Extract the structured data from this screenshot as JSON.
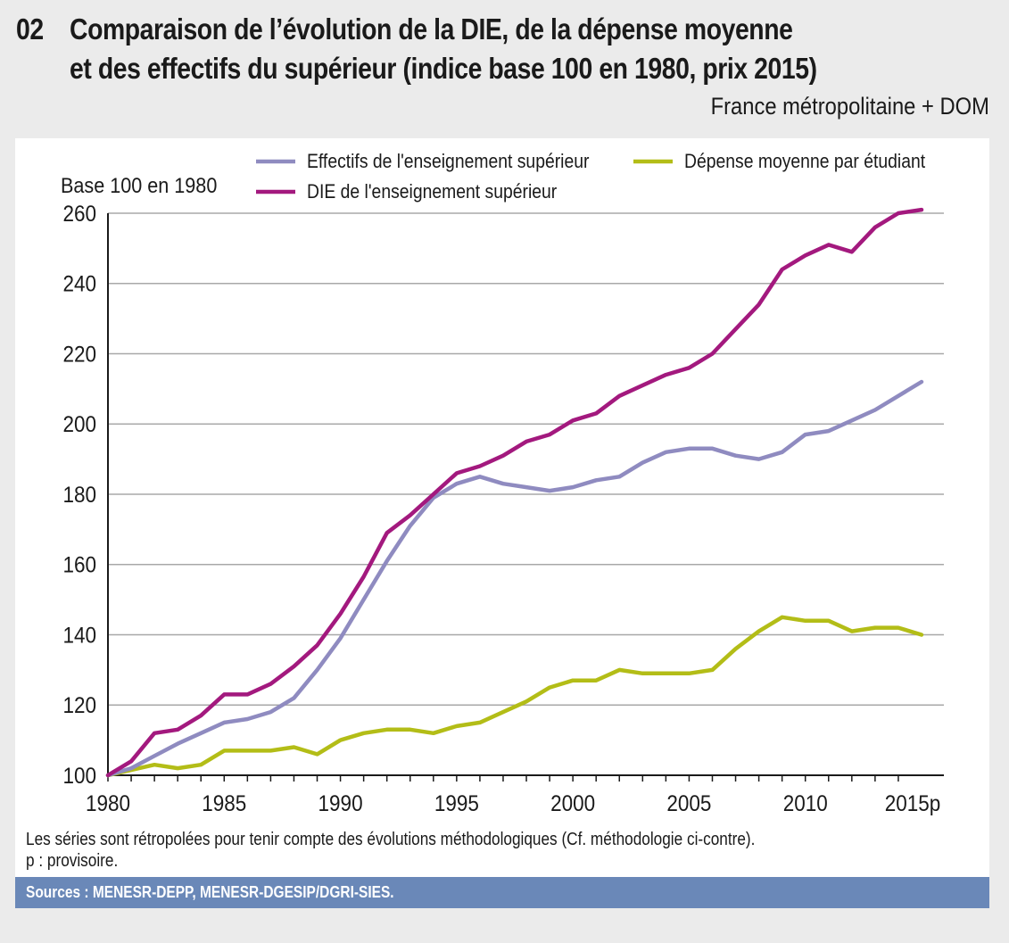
{
  "header": {
    "number": "02",
    "title_line1": "Comparaison de l’évolution de la DIE, de la dépense moyenne",
    "title_line2": "et des effectifs du supérieur (indice base 100 en 1980, prix 2015)",
    "subtitle": "France métropolitaine + DOM"
  },
  "notes": {
    "line1": "Les séries sont rétropolées pour tenir compte des évolutions méthodologiques (Cf. méthodologie ci-contre).",
    "line2": "p : provisoire."
  },
  "sources": "Sources : MENESR-DEPP, MENESR-DGESIP/DGRI-SIES.",
  "chart_data": {
    "type": "line",
    "title": "Comparaison de l’évolution de la DIE, de la dépense moyenne et des effectifs du supérieur (indice base 100 en 1980, prix 2015)",
    "xlabel": "",
    "ylabel": "Base 100 en 1980",
    "ylim": [
      100,
      260
    ],
    "yticks": [
      100,
      120,
      140,
      160,
      180,
      200,
      220,
      240,
      260
    ],
    "grid": true,
    "legend_position": "top",
    "x": [
      1980,
      1981,
      1982,
      1983,
      1984,
      1985,
      1986,
      1987,
      1988,
      1989,
      1990,
      1991,
      1992,
      1993,
      1994,
      1995,
      1996,
      1997,
      1998,
      1999,
      2000,
      2001,
      2002,
      2003,
      2004,
      2005,
      2006,
      2007,
      2008,
      2009,
      2010,
      2011,
      2012,
      2013,
      2014,
      2015
    ],
    "xtick_labels": [
      {
        "year": 1980,
        "label": "1980"
      },
      {
        "year": 1985,
        "label": "1985"
      },
      {
        "year": 1990,
        "label": "1990"
      },
      {
        "year": 1995,
        "label": "1995"
      },
      {
        "year": 2000,
        "label": "2000"
      },
      {
        "year": 2005,
        "label": "2005"
      },
      {
        "year": 2010,
        "label": "2010"
      },
      {
        "year": 2015,
        "label": "2015p"
      }
    ],
    "series": [
      {
        "name": "Effectifs de l'enseignement supérieur",
        "color": "#8f8bc0",
        "values": [
          100,
          102,
          105.5,
          109,
          112,
          115,
          116,
          118,
          122,
          130,
          139,
          150,
          161,
          171,
          179,
          183,
          185,
          183,
          182,
          181,
          182,
          184,
          185,
          189,
          192,
          193,
          193,
          191,
          190,
          192,
          197,
          198,
          201,
          204,
          208,
          212
        ]
      },
      {
        "name": "Dépense  moyenne par étudiant",
        "color": "#b3bd17",
        "values": [
          100,
          101.5,
          103,
          102,
          103,
          107,
          107,
          107,
          108,
          106,
          110,
          112,
          113,
          113,
          112,
          114,
          115,
          118,
          121,
          125,
          127,
          127,
          130,
          129,
          129,
          129,
          130,
          136,
          141,
          145,
          144,
          144,
          141,
          142,
          142,
          140
        ]
      },
      {
        "name": "DIE de l'enseignement supérieur",
        "color": "#a3197e",
        "values": [
          100,
          104,
          112,
          113,
          117,
          123,
          123,
          126,
          131,
          137,
          146,
          156.5,
          169,
          174,
          180,
          186,
          188,
          191,
          195,
          197,
          201,
          203,
          208,
          211,
          214,
          216,
          220,
          227,
          234,
          244,
          248,
          251,
          249,
          256,
          260,
          261
        ]
      }
    ]
  }
}
